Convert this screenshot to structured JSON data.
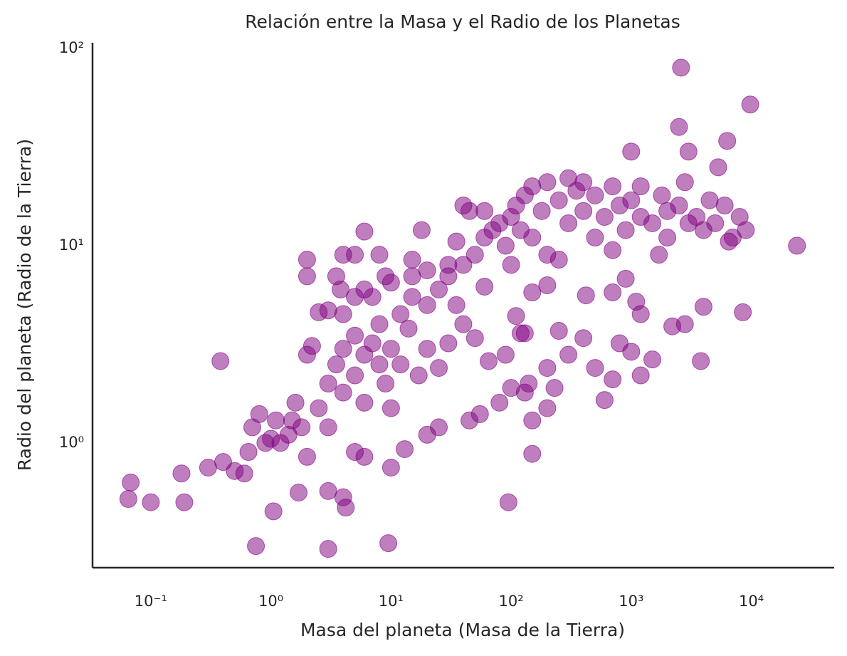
{
  "chart_data": {
    "type": "scatter",
    "title": "Relación entre la Masa y el Radio de los Planetas",
    "x_label": "Masa del planeta (Masa de la Tierra)",
    "y_label": "Radio del planeta (Radio de la Tierra)",
    "x_scale": "log",
    "y_scale": "log",
    "grid": false,
    "color": "#800080",
    "xlim": [
      0.0327,
      49000
    ],
    "ylim": [
      0.233,
      107
    ],
    "xticks": [
      {
        "value": 0.1,
        "label": "10⁻¹"
      },
      {
        "value": 1,
        "label": "10⁰"
      },
      {
        "value": 10,
        "label": "10¹"
      },
      {
        "value": 100,
        "label": "10²"
      },
      {
        "value": 1000,
        "label": "10³"
      },
      {
        "value": 10000,
        "label": "10⁴"
      }
    ],
    "yticks": [
      {
        "value": 1,
        "label": "10⁰"
      },
      {
        "value": 10,
        "label": "10¹"
      },
      {
        "value": 100,
        "label": "10²"
      }
    ],
    "x": [
      2600,
      9800,
      2500,
      6300,
      1000,
      3000,
      5300,
      24000,
      0.065,
      0.068,
      0.1,
      0.18,
      0.19,
      0.38,
      0.75,
      1.05,
      3,
      9.5,
      3,
      4,
      4.2,
      1.7,
      95,
      150,
      8500,
      4000,
      3800,
      2800,
      2200,
      1500,
      1200,
      900,
      1100,
      1200,
      700,
      600,
      700,
      500,
      400,
      300,
      250,
      230,
      200,
      420,
      800,
      1000,
      2,
      2,
      4,
      5,
      6,
      8,
      9,
      15,
      18,
      30,
      40,
      45,
      60,
      35,
      3.5,
      3.8,
      5,
      2.5,
      3,
      4,
      6,
      7,
      15,
      20,
      10,
      5,
      6,
      2,
      10,
      13,
      20,
      25,
      45,
      55,
      80,
      100,
      130,
      150,
      200,
      65,
      90,
      120,
      110,
      130,
      140,
      200,
      150,
      0.3,
      0.4,
      0.5,
      0.6,
      0.65,
      0.7,
      0.8,
      0.9,
      1,
      1.1,
      1.2,
      1.4,
      1.5,
      1.6,
      1.8,
      2,
      2.2,
      2.5,
      3,
      3,
      3.5,
      4,
      4,
      5,
      5,
      6,
      6,
      7,
      8,
      8,
      9,
      10,
      10,
      12,
      12,
      14,
      15,
      17,
      20,
      20,
      25,
      25,
      30,
      30,
      35,
      40,
      40,
      50,
      50,
      60,
      70,
      80,
      90,
      100,
      110,
      120,
      130,
      150,
      150,
      180,
      200,
      200,
      250,
      300,
      300,
      350,
      400,
      400,
      500,
      500,
      600,
      700,
      800,
      900,
      1000,
      1200,
      1200,
      1500,
      1800,
      2000,
      2000,
      2500,
      2800,
      3000,
      3500,
      4000,
      4500,
      5000,
      6000,
      7000,
      8000,
      9000,
      6500,
      1700,
      700,
      250,
      100,
      60
    ],
    "values": [
      80,
      52,
      40,
      34,
      30,
      30,
      25,
      10,
      0.52,
      0.63,
      0.5,
      0.7,
      0.5,
      2.6,
      0.3,
      0.45,
      0.29,
      0.31,
      0.57,
      0.53,
      0.47,
      0.56,
      0.5,
      0.88,
      4.6,
      4.9,
      2.6,
      4,
      3.9,
      2.65,
      2.2,
      6.8,
      5.2,
      4.5,
      5.8,
      1.65,
      2.1,
      2.4,
      3.4,
      2.8,
      3.7,
      1.9,
      2.4,
      5.6,
      3.2,
      2.9,
      8.5,
      7,
      9,
      9,
      11.8,
      9,
      7,
      8.5,
      12,
      8,
      16,
      15,
      15,
      10.5,
      7,
      6,
      5.5,
      4.6,
      4.7,
      4.5,
      6,
      5.5,
      7,
      7.5,
      6.5,
      0.9,
      0.85,
      0.85,
      0.75,
      0.93,
      1.1,
      1.2,
      1.3,
      1.4,
      1.6,
      1.9,
      1.8,
      1.3,
      1.5,
      2.6,
      2.8,
      3.6,
      4.4,
      3.6,
      2,
      6.3,
      5.8,
      0.75,
      0.8,
      0.72,
      0.7,
      0.9,
      1.2,
      1.4,
      1,
      1.05,
      1.3,
      1,
      1.1,
      1.3,
      1.6,
      1.2,
      2.8,
      3.1,
      1.5,
      2,
      1.2,
      2.5,
      3,
      1.8,
      2.2,
      3.5,
      2.8,
      1.6,
      3.2,
      2.5,
      4,
      2,
      3,
      1.5,
      4.5,
      2.5,
      3.8,
      5.5,
      2.2,
      5,
      3,
      6,
      2.4,
      7,
      3.2,
      5,
      4,
      8,
      9,
      3.4,
      11,
      12,
      13,
      10,
      14,
      16,
      12,
      18,
      20,
      11,
      15,
      21,
      9,
      17,
      22,
      13,
      19,
      15,
      21,
      18,
      11,
      14,
      20,
      16,
      12,
      17,
      20,
      14,
      13,
      18,
      11,
      15,
      16,
      21,
      13,
      14,
      12,
      17,
      13,
      16,
      11,
      14,
      12,
      10.5,
      9,
      9.5,
      8.5,
      8,
      6.2
    ]
  }
}
